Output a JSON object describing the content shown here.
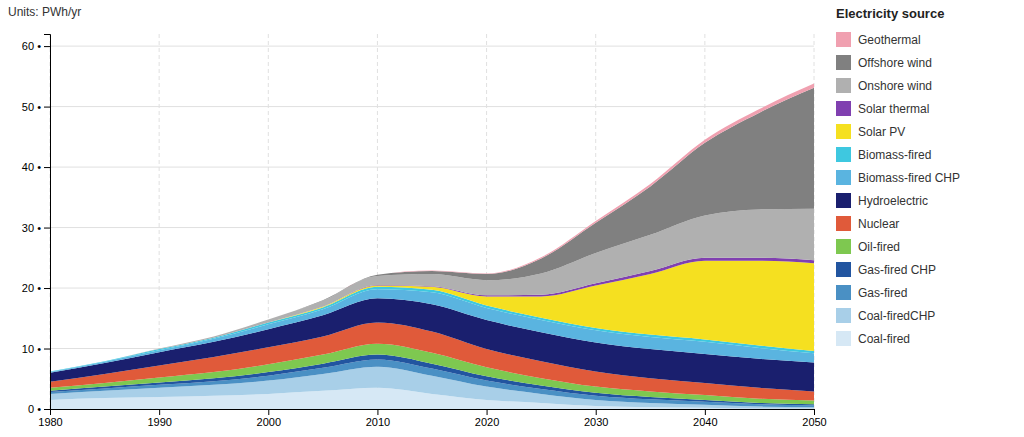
{
  "chart_data": {
    "type": "area",
    "stacked": true,
    "legend_title": "Electricity source",
    "y_label": "Units: PWh/yr",
    "x": [
      1980,
      1985,
      1990,
      1995,
      2000,
      2005,
      2010,
      2015,
      2020,
      2025,
      2030,
      2035,
      2040,
      2045,
      2050
    ],
    "xlim": [
      1980,
      2050
    ],
    "xticks": [
      1980,
      1990,
      2000,
      2010,
      2020,
      2030,
      2040,
      2050
    ],
    "ylim": [
      0,
      62
    ],
    "yticks": [
      {
        "value": 0,
        "label": "0 •"
      },
      {
        "value": 10,
        "label": "10 •"
      },
      {
        "value": 20,
        "label": "20 •"
      },
      {
        "value": 30,
        "label": "30 •"
      },
      {
        "value": 40,
        "label": "40 •"
      },
      {
        "value": 50,
        "label": "50 •"
      },
      {
        "value": 60,
        "label": "60 •"
      }
    ],
    "grid": true,
    "legend": "right",
    "series": [
      {
        "name": "Coal-fired",
        "color": "#d6e8f5",
        "values": [
          1.5,
          1.8,
          2.0,
          2.2,
          2.5,
          3.0,
          3.5,
          2.5,
          1.5,
          1.0,
          0.5,
          0.3,
          0.2,
          0.1,
          0.1
        ]
      },
      {
        "name": "Coal-firedCHP",
        "color": "#a8cfe8",
        "values": [
          1.0,
          1.2,
          1.5,
          1.8,
          2.2,
          2.8,
          3.5,
          3.0,
          2.2,
          1.5,
          1.0,
          0.7,
          0.5,
          0.3,
          0.2
        ]
      },
      {
        "name": "Gas-fired",
        "color": "#4a90c4",
        "values": [
          0.3,
          0.4,
          0.5,
          0.6,
          0.8,
          1.0,
          1.2,
          1.2,
          1.0,
          0.8,
          0.7,
          0.6,
          0.5,
          0.4,
          0.3
        ]
      },
      {
        "name": "Gas-fired CHP",
        "color": "#2255a0",
        "values": [
          0.2,
          0.3,
          0.4,
          0.5,
          0.6,
          0.7,
          0.8,
          0.8,
          0.7,
          0.6,
          0.5,
          0.4,
          0.3,
          0.2,
          0.2
        ]
      },
      {
        "name": "Oil-fired",
        "color": "#7ec850",
        "values": [
          0.5,
          0.6,
          0.8,
          1.0,
          1.3,
          1.5,
          1.8,
          1.8,
          1.5,
          1.2,
          1.0,
          0.9,
          0.8,
          0.7,
          0.6
        ]
      },
      {
        "name": "Nuclear",
        "color": "#e05a3a",
        "values": [
          1.0,
          1.5,
          2.0,
          2.5,
          2.8,
          3.0,
          3.5,
          3.5,
          3.0,
          2.8,
          2.5,
          2.2,
          2.0,
          1.8,
          1.5
        ]
      },
      {
        "name": "Hydroelectric",
        "color": "#1a1f6e",
        "values": [
          1.5,
          1.8,
          2.2,
          2.5,
          3.0,
          3.5,
          4.0,
          4.5,
          4.8,
          4.8,
          4.8,
          4.8,
          4.8,
          4.8,
          4.8
        ]
      },
      {
        "name": "Biomass-fired CHP",
        "color": "#5ab4e0",
        "values": [
          0.1,
          0.2,
          0.3,
          0.5,
          0.8,
          1.0,
          1.5,
          2.0,
          2.0,
          2.0,
          2.0,
          2.0,
          2.0,
          1.8,
          1.5
        ]
      },
      {
        "name": "Biomass-fired",
        "color": "#3ec8e0",
        "values": [
          0.1,
          0.1,
          0.2,
          0.2,
          0.3,
          0.3,
          0.4,
          0.4,
          0.4,
          0.4,
          0.4,
          0.4,
          0.4,
          0.4,
          0.4
        ]
      },
      {
        "name": "Solar PV",
        "color": "#f5e020",
        "values": [
          0.0,
          0.0,
          0.0,
          0.0,
          0.0,
          0.1,
          0.2,
          0.5,
          1.5,
          3.5,
          7.0,
          10.0,
          13.0,
          14.0,
          14.5
        ]
      },
      {
        "name": "Solar thermal",
        "color": "#8040b0",
        "values": [
          0.0,
          0.0,
          0.0,
          0.0,
          0.0,
          0.0,
          0.1,
          0.1,
          0.2,
          0.3,
          0.4,
          0.5,
          0.5,
          0.5,
          0.5
        ]
      },
      {
        "name": "Onshore wind",
        "color": "#b0b0b0",
        "values": [
          0.0,
          0.0,
          0.1,
          0.2,
          0.5,
          1.0,
          1.5,
          2.0,
          2.5,
          3.5,
          5.0,
          6.0,
          7.0,
          8.0,
          8.5
        ]
      },
      {
        "name": "Offshore wind",
        "color": "#808080",
        "values": [
          0.0,
          0.0,
          0.0,
          0.0,
          0.0,
          0.1,
          0.2,
          0.5,
          1.0,
          2.5,
          5.0,
          8.0,
          12.0,
          16.0,
          20.0
        ]
      },
      {
        "name": "Geothermal",
        "color": "#f0a0b0",
        "values": [
          0.0,
          0.0,
          0.0,
          0.0,
          0.0,
          0.0,
          0.0,
          0.1,
          0.1,
          0.2,
          0.3,
          0.4,
          0.5,
          0.6,
          0.7
        ]
      }
    ]
  }
}
